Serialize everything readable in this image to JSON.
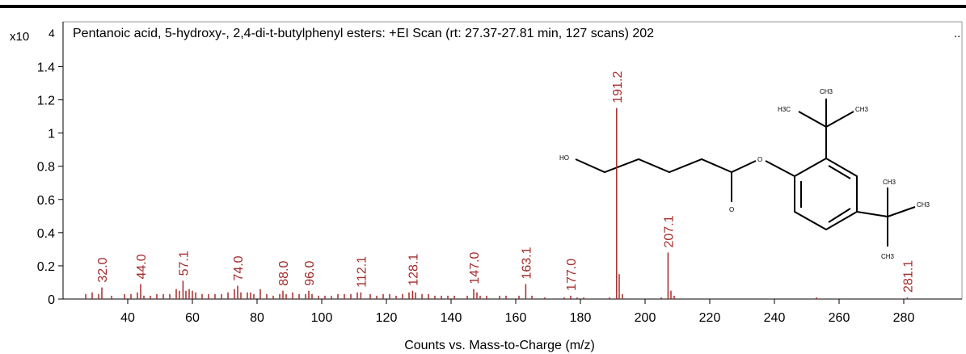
{
  "chart_data": {
    "type": "stem",
    "title": "Pentanoic acid, 5-hydroxy-, 2,4-di-t-butylphenyl esters: +EI Scan (rt: 27.37-27.81 min, 127 scans) 202",
    "y_multiplier": "x10",
    "y_multiplier_exp": "4",
    "more": "..",
    "xlabel": "Counts vs. Mass-to-Charge (m/z)",
    "color": "#a52a2a",
    "xlim": [
      20,
      298
    ],
    "ylim": [
      0,
      1.67
    ],
    "xticks": [
      40,
      60,
      80,
      100,
      120,
      140,
      160,
      180,
      200,
      220,
      240,
      260,
      280
    ],
    "yticks": [
      0,
      0.2,
      0.4,
      0.6,
      0.8,
      1,
      1.2,
      1.4
    ],
    "x": [
      27,
      29,
      31,
      32,
      35,
      39,
      41,
      43,
      44,
      45,
      47,
      49,
      51,
      53,
      55,
      56,
      57.1,
      58,
      59,
      60,
      61,
      63,
      65,
      67,
      69,
      71,
      73,
      74,
      75,
      77,
      78,
      79,
      81,
      83,
      85,
      87,
      88,
      89,
      91,
      93,
      95,
      96,
      97,
      99,
      101,
      103,
      105,
      107,
      109,
      111,
      112.1,
      115,
      117,
      119,
      121,
      123,
      125,
      127,
      128.1,
      129,
      131,
      133,
      135,
      137,
      139,
      141,
      145,
      147,
      148,
      149,
      151,
      155,
      157,
      161,
      163.1,
      165,
      169,
      175,
      177,
      179,
      181,
      189,
      191.2,
      192,
      193,
      205,
      207.1,
      208,
      209,
      253,
      281.1
    ],
    "values": [
      0.03,
      0.04,
      0.03,
      0.07,
      0.02,
      0.03,
      0.03,
      0.04,
      0.09,
      0.02,
      0.02,
      0.03,
      0.03,
      0.03,
      0.06,
      0.05,
      0.11,
      0.05,
      0.06,
      0.05,
      0.04,
      0.03,
      0.03,
      0.03,
      0.03,
      0.04,
      0.06,
      0.08,
      0.04,
      0.04,
      0.04,
      0.03,
      0.06,
      0.03,
      0.02,
      0.03,
      0.05,
      0.03,
      0.04,
      0.03,
      0.03,
      0.05,
      0.03,
      0.02,
      0.02,
      0.02,
      0.03,
      0.03,
      0.03,
      0.04,
      0.04,
      0.03,
      0.02,
      0.03,
      0.03,
      0.02,
      0.03,
      0.04,
      0.05,
      0.04,
      0.03,
      0.03,
      0.02,
      0.02,
      0.02,
      0.02,
      0.02,
      0.06,
      0.04,
      0.02,
      0.02,
      0.02,
      0.02,
      0.02,
      0.09,
      0.02,
      0.01,
      0.01,
      0.02,
      0.01,
      0.01,
      0.01,
      1.15,
      0.15,
      0.03,
      0.01,
      0.28,
      0.05,
      0.02,
      0.01,
      0.01
    ],
    "x_labels": [
      null,
      null,
      null,
      "32.0",
      null,
      null,
      null,
      null,
      "44.0",
      null,
      null,
      null,
      null,
      null,
      null,
      null,
      "57.1",
      null,
      null,
      null,
      null,
      null,
      null,
      null,
      null,
      null,
      null,
      "74.0",
      null,
      null,
      null,
      null,
      null,
      null,
      null,
      null,
      "88.0",
      null,
      null,
      null,
      null,
      "96.0",
      null,
      null,
      null,
      null,
      null,
      null,
      null,
      null,
      "112.1",
      null,
      null,
      null,
      null,
      null,
      null,
      null,
      "128.1",
      null,
      null,
      null,
      null,
      null,
      null,
      null,
      null,
      "147.0",
      null,
      null,
      null,
      null,
      null,
      null,
      "163.1",
      null,
      null,
      null,
      "177.0",
      null,
      null,
      null,
      "191.2",
      null,
      null,
      null,
      "207.1",
      null,
      null,
      null,
      "281.1"
    ],
    "structure": {
      "labels": [
        "HO",
        "O",
        "O",
        "H3C",
        "CH3",
        "CH3",
        "CH3",
        "CH3",
        "CH3"
      ]
    }
  }
}
